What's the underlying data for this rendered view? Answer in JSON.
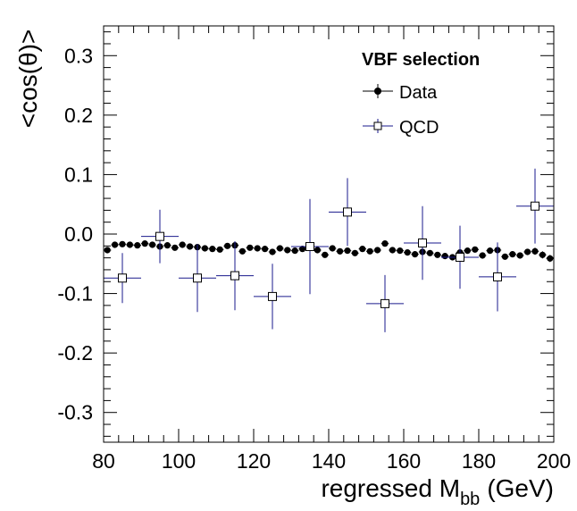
{
  "chart_data": {
    "type": "scatter",
    "xlabel": "regressed M",
    "xlabel_sub": "bb",
    "xlabel_unit": "(GeV)",
    "ylabel": "<cos(θ)>",
    "xlim": [
      80,
      200
    ],
    "ylim": [
      -0.35,
      0.35
    ],
    "x_ticks": [
      80,
      100,
      120,
      140,
      160,
      180,
      200
    ],
    "y_ticks": [
      -0.3,
      -0.2,
      -0.1,
      0.0,
      0.1,
      0.2,
      0.3
    ],
    "y_tick_labels": [
      "-0.3",
      "-0.2",
      "-0.1",
      "0.0",
      "0.1",
      "0.2",
      "0.3"
    ],
    "grid": false,
    "legend": {
      "title": "VBF selection",
      "placement": "top-right",
      "entries": [
        "Data",
        "QCD"
      ]
    },
    "series": [
      {
        "name": "Data",
        "marker": "filled-circle",
        "color": "#000000",
        "bin_width": 2,
        "x": [
          81,
          83,
          85,
          87,
          89,
          91,
          93,
          95,
          97,
          99,
          101,
          103,
          105,
          107,
          109,
          111,
          113,
          115,
          117,
          119,
          121,
          123,
          125,
          127,
          129,
          131,
          133,
          135,
          137,
          139,
          141,
          143,
          145,
          147,
          149,
          151,
          153,
          155,
          157,
          159,
          161,
          163,
          165,
          167,
          169,
          171,
          173,
          175,
          177,
          179,
          181,
          183,
          185,
          187,
          189,
          191,
          193,
          195,
          197,
          199
        ],
        "y": [
          -0.027,
          -0.018,
          -0.017,
          -0.018,
          -0.019,
          -0.016,
          -0.018,
          -0.021,
          -0.019,
          -0.023,
          -0.018,
          -0.021,
          -0.022,
          -0.024,
          -0.025,
          -0.026,
          -0.02,
          -0.019,
          -0.029,
          -0.023,
          -0.024,
          -0.025,
          -0.03,
          -0.024,
          -0.027,
          -0.028,
          -0.025,
          -0.022,
          -0.027,
          -0.035,
          -0.024,
          -0.029,
          -0.028,
          -0.032,
          -0.025,
          -0.029,
          -0.027,
          -0.016,
          -0.027,
          -0.028,
          -0.031,
          -0.034,
          -0.03,
          -0.032,
          -0.035,
          -0.037,
          -0.039,
          -0.031,
          -0.028,
          -0.026,
          -0.036,
          -0.028,
          -0.027,
          -0.038,
          -0.034,
          -0.036,
          -0.03,
          -0.029,
          -0.035,
          -0.041
        ],
        "yerr": [
          0.004,
          0.004,
          0.004,
          0.004,
          0.004,
          0.004,
          0.004,
          0.004,
          0.004,
          0.004,
          0.004,
          0.004,
          0.004,
          0.004,
          0.004,
          0.004,
          0.004,
          0.004,
          0.004,
          0.004,
          0.004,
          0.004,
          0.004,
          0.004,
          0.004,
          0.004,
          0.004,
          0.004,
          0.004,
          0.004,
          0.004,
          0.004,
          0.004,
          0.004,
          0.004,
          0.004,
          0.004,
          0.004,
          0.004,
          0.004,
          0.004,
          0.004,
          0.004,
          0.004,
          0.004,
          0.005,
          0.005,
          0.005,
          0.005,
          0.005,
          0.005,
          0.005,
          0.005,
          0.005,
          0.005,
          0.005,
          0.005,
          0.006,
          0.006,
          0.006
        ]
      },
      {
        "name": "QCD",
        "marker": "open-square",
        "color": "#1a1a8c",
        "bin_width": 10,
        "x": [
          85,
          95,
          105,
          115,
          125,
          135,
          145,
          155,
          165,
          175,
          185,
          195
        ],
        "y": [
          -0.074,
          -0.004,
          -0.074,
          -0.07,
          -0.105,
          -0.021,
          0.037,
          -0.117,
          -0.015,
          -0.039,
          -0.072,
          0.047
        ],
        "yerr": [
          0.042,
          0.045,
          0.057,
          0.058,
          0.055,
          0.08,
          0.057,
          0.048,
          0.062,
          0.053,
          0.058,
          0.063
        ]
      }
    ]
  }
}
